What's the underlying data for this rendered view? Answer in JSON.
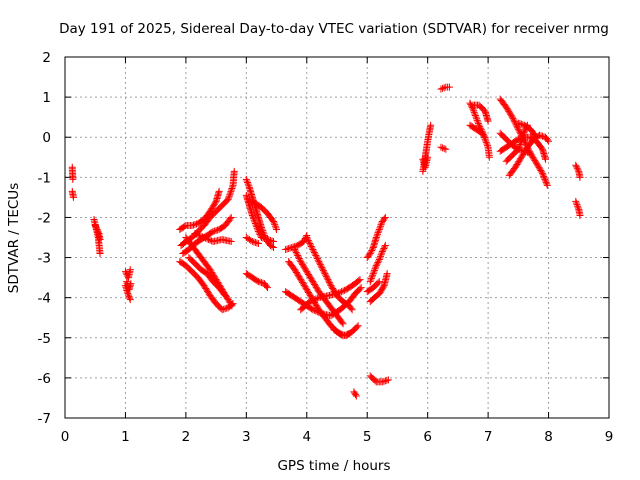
{
  "chart_data": {
    "type": "scatter",
    "title": "Day 191 of 2025, Sidereal Day-to-day VTEC variation (SDTVAR) for receiver nrmg",
    "xlabel": "GPS time / hours",
    "ylabel": "SDTVAR / TECUs",
    "xlim": [
      0,
      9
    ],
    "ylim": [
      -7,
      2
    ],
    "xticks": [
      "0",
      "1",
      "2",
      "3",
      "4",
      "5",
      "6",
      "7",
      "8",
      "9"
    ],
    "yticks": [
      "2",
      "1",
      "0",
      "-1",
      "-2",
      "-3",
      "-4",
      "-5",
      "-6",
      "-7"
    ],
    "grid": true,
    "marker": "+",
    "color": "#ff0000",
    "segments": [
      [
        [
          0.12,
          -0.75
        ],
        [
          0.13,
          -1.05
        ]
      ],
      [
        [
          0.12,
          -1.35
        ],
        [
          0.14,
          -1.5
        ]
      ],
      [
        [
          0.48,
          -2.05
        ],
        [
          0.52,
          -2.3
        ],
        [
          0.55,
          -2.5
        ],
        [
          0.58,
          -2.9
        ]
      ],
      [
        [
          0.5,
          -2.2
        ],
        [
          0.56,
          -2.4
        ],
        [
          0.58,
          -2.55
        ]
      ],
      [
        [
          1.0,
          -3.35
        ],
        [
          1.05,
          -3.5
        ],
        [
          1.08,
          -3.3
        ]
      ],
      [
        [
          1.0,
          -3.7
        ],
        [
          1.04,
          -3.9
        ],
        [
          1.08,
          -4.05
        ]
      ],
      [
        [
          1.02,
          -3.6
        ],
        [
          1.06,
          -3.8
        ],
        [
          1.09,
          -3.65
        ]
      ],
      [
        [
          1.9,
          -2.3
        ],
        [
          2.0,
          -2.2
        ],
        [
          2.1,
          -2.2
        ],
        [
          2.2,
          -2.15
        ],
        [
          2.3,
          -2.05
        ],
        [
          2.4,
          -1.85
        ],
        [
          2.5,
          -1.6
        ],
        [
          2.55,
          -1.35
        ]
      ],
      [
        [
          1.92,
          -2.7
        ],
        [
          2.0,
          -2.6
        ],
        [
          2.1,
          -2.5
        ],
        [
          2.2,
          -2.35
        ],
        [
          2.3,
          -2.2
        ],
        [
          2.4,
          -2.0
        ],
        [
          2.5,
          -1.85
        ],
        [
          2.6,
          -1.7
        ],
        [
          2.7,
          -1.55
        ],
        [
          2.78,
          -1.2
        ],
        [
          2.8,
          -0.85
        ]
      ],
      [
        [
          1.95,
          -2.9
        ],
        [
          2.05,
          -2.8
        ],
        [
          2.15,
          -2.65
        ],
        [
          2.25,
          -2.55
        ],
        [
          2.35,
          -2.45
        ],
        [
          2.45,
          -2.35
        ],
        [
          2.55,
          -2.3
        ],
        [
          2.65,
          -2.2
        ],
        [
          2.75,
          -2.0
        ]
      ],
      [
        [
          1.9,
          -3.1
        ],
        [
          2.0,
          -3.2
        ],
        [
          2.1,
          -3.35
        ],
        [
          2.2,
          -3.5
        ],
        [
          2.3,
          -3.7
        ],
        [
          2.4,
          -3.95
        ],
        [
          2.5,
          -4.15
        ],
        [
          2.6,
          -4.3
        ],
        [
          2.7,
          -4.25
        ],
        [
          2.78,
          -4.15
        ]
      ],
      [
        [
          2.0,
          -2.5
        ],
        [
          2.1,
          -2.7
        ],
        [
          2.2,
          -2.9
        ],
        [
          2.3,
          -3.1
        ],
        [
          2.4,
          -3.3
        ],
        [
          2.5,
          -3.55
        ],
        [
          2.6,
          -3.8
        ],
        [
          2.7,
          -4.05
        ],
        [
          2.76,
          -4.2
        ]
      ],
      [
        [
          2.05,
          -3.0
        ],
        [
          2.15,
          -3.15
        ],
        [
          2.25,
          -3.3
        ],
        [
          2.35,
          -3.4
        ],
        [
          2.45,
          -3.6
        ],
        [
          2.55,
          -3.75
        ],
        [
          2.65,
          -3.95
        ]
      ],
      [
        [
          2.15,
          -2.4
        ],
        [
          2.3,
          -2.5
        ],
        [
          2.45,
          -2.6
        ],
        [
          2.6,
          -2.55
        ],
        [
          2.75,
          -2.6
        ]
      ],
      [
        [
          3.0,
          -1.05
        ],
        [
          3.05,
          -1.25
        ],
        [
          3.1,
          -1.5
        ],
        [
          3.15,
          -1.75
        ],
        [
          3.2,
          -2.0
        ],
        [
          3.25,
          -2.25
        ],
        [
          3.3,
          -2.45
        ],
        [
          3.35,
          -2.6
        ],
        [
          3.4,
          -2.7
        ],
        [
          3.45,
          -2.75
        ]
      ],
      [
        [
          3.0,
          -1.45
        ],
        [
          3.05,
          -1.7
        ],
        [
          3.1,
          -1.95
        ],
        [
          3.15,
          -2.15
        ],
        [
          3.2,
          -2.35
        ],
        [
          3.25,
          -2.5
        ],
        [
          3.35,
          -2.55
        ],
        [
          3.45,
          -2.6
        ]
      ],
      [
        [
          3.05,
          -1.6
        ],
        [
          3.15,
          -1.65
        ],
        [
          3.25,
          -1.75
        ],
        [
          3.35,
          -1.9
        ],
        [
          3.45,
          -2.1
        ],
        [
          3.5,
          -2.3
        ]
      ],
      [
        [
          3.0,
          -2.5
        ],
        [
          3.05,
          -2.55
        ],
        [
          3.1,
          -2.6
        ],
        [
          3.2,
          -2.65
        ]
      ],
      [
        [
          3.0,
          -3.4
        ],
        [
          3.1,
          -3.5
        ],
        [
          3.2,
          -3.6
        ],
        [
          3.3,
          -3.65
        ],
        [
          3.35,
          -3.75
        ]
      ],
      [
        [
          3.65,
          -2.8
        ],
        [
          3.75,
          -2.75
        ],
        [
          3.85,
          -2.7
        ],
        [
          3.95,
          -2.6
        ],
        [
          4.0,
          -2.45
        ]
      ],
      [
        [
          3.7,
          -3.1
        ],
        [
          3.8,
          -3.3
        ],
        [
          3.9,
          -3.55
        ],
        [
          4.0,
          -3.8
        ],
        [
          4.1,
          -4.05
        ],
        [
          4.2,
          -4.3
        ],
        [
          4.3,
          -4.5
        ],
        [
          4.4,
          -4.7
        ],
        [
          4.5,
          -4.85
        ],
        [
          4.6,
          -4.95
        ],
        [
          4.7,
          -4.9
        ]
      ],
      [
        [
          3.8,
          -2.8
        ],
        [
          3.9,
          -3.1
        ],
        [
          4.0,
          -3.35
        ],
        [
          4.1,
          -3.6
        ],
        [
          4.2,
          -3.85
        ],
        [
          4.3,
          -4.05
        ],
        [
          4.4,
          -4.25
        ],
        [
          4.5,
          -4.45
        ],
        [
          4.6,
          -4.65
        ]
      ],
      [
        [
          4.0,
          -2.5
        ],
        [
          4.1,
          -2.8
        ],
        [
          4.2,
          -3.1
        ],
        [
          4.3,
          -3.4
        ],
        [
          4.4,
          -3.7
        ],
        [
          4.5,
          -3.95
        ],
        [
          4.6,
          -4.1
        ],
        [
          4.7,
          -4.2
        ],
        [
          4.75,
          -4.3
        ]
      ],
      [
        [
          3.65,
          -3.85
        ],
        [
          3.8,
          -4.0
        ],
        [
          3.95,
          -4.15
        ],
        [
          4.1,
          -4.3
        ],
        [
          4.25,
          -4.4
        ],
        [
          4.4,
          -4.45
        ],
        [
          4.55,
          -4.3
        ],
        [
          4.7,
          -4.1
        ],
        [
          4.8,
          -3.9
        ],
        [
          4.9,
          -3.75
        ]
      ],
      [
        [
          3.9,
          -4.3
        ],
        [
          4.05,
          -4.1
        ],
        [
          4.2,
          -4.0
        ],
        [
          4.35,
          -3.95
        ],
        [
          4.5,
          -3.9
        ],
        [
          4.65,
          -3.8
        ],
        [
          4.8,
          -3.65
        ],
        [
          4.88,
          -3.55
        ]
      ],
      [
        [
          4.45,
          -4.8
        ],
        [
          4.55,
          -4.9
        ],
        [
          4.65,
          -4.95
        ],
        [
          4.75,
          -4.85
        ],
        [
          4.85,
          -4.7
        ]
      ],
      [
        [
          4.78,
          -6.35
        ],
        [
          4.82,
          -6.45
        ]
      ],
      [
        [
          5.0,
          -3.0
        ],
        [
          5.05,
          -2.9
        ],
        [
          5.1,
          -2.75
        ],
        [
          5.15,
          -2.5
        ],
        [
          5.2,
          -2.3
        ],
        [
          5.25,
          -2.1
        ],
        [
          5.3,
          -2.0
        ]
      ],
      [
        [
          5.05,
          -3.6
        ],
        [
          5.1,
          -3.4
        ],
        [
          5.15,
          -3.2
        ],
        [
          5.2,
          -3.05
        ],
        [
          5.25,
          -2.85
        ],
        [
          5.3,
          -2.7
        ]
      ],
      [
        [
          5.05,
          -4.1
        ],
        [
          5.12,
          -4.0
        ],
        [
          5.2,
          -3.9
        ],
        [
          5.28,
          -3.7
        ],
        [
          5.33,
          -3.4
        ]
      ],
      [
        [
          5.0,
          -3.85
        ],
        [
          5.1,
          -3.75
        ],
        [
          5.2,
          -3.6
        ]
      ],
      [
        [
          5.05,
          -5.95
        ],
        [
          5.15,
          -6.1
        ],
        [
          5.25,
          -6.1
        ],
        [
          5.35,
          -6.05
        ]
      ],
      [
        [
          5.92,
          -0.85
        ],
        [
          5.95,
          -0.6
        ],
        [
          5.98,
          -0.3
        ],
        [
          6.0,
          -0.1
        ],
        [
          6.03,
          0.15
        ],
        [
          6.05,
          0.3
        ]
      ],
      [
        [
          5.92,
          -0.55
        ],
        [
          5.96,
          -0.75
        ],
        [
          6.0,
          -0.5
        ]
      ],
      [
        [
          6.22,
          1.2
        ],
        [
          6.3,
          1.25
        ],
        [
          6.36,
          1.25
        ]
      ],
      [
        [
          6.22,
          -0.25
        ],
        [
          6.3,
          -0.3
        ]
      ],
      [
        [
          6.7,
          0.85
        ],
        [
          6.75,
          0.7
        ],
        [
          6.8,
          0.5
        ],
        [
          6.85,
          0.3
        ],
        [
          6.9,
          0.15
        ],
        [
          6.95,
          -0.05
        ],
        [
          7.0,
          -0.25
        ],
        [
          7.02,
          -0.5
        ]
      ],
      [
        [
          6.7,
          0.3
        ],
        [
          6.8,
          0.2
        ],
        [
          6.9,
          0.1
        ],
        [
          6.95,
          0.0
        ]
      ],
      [
        [
          6.75,
          0.8
        ],
        [
          6.85,
          0.8
        ],
        [
          6.95,
          0.65
        ],
        [
          7.0,
          0.4
        ]
      ],
      [
        [
          7.2,
          0.95
        ],
        [
          7.3,
          0.75
        ],
        [
          7.4,
          0.5
        ],
        [
          7.5,
          0.2
        ],
        [
          7.6,
          -0.1
        ],
        [
          7.7,
          -0.4
        ],
        [
          7.8,
          -0.65
        ],
        [
          7.9,
          -0.9
        ],
        [
          7.98,
          -1.2
        ]
      ],
      [
        [
          7.2,
          0.1
        ],
        [
          7.3,
          -0.05
        ],
        [
          7.4,
          -0.2
        ],
        [
          7.5,
          -0.3
        ],
        [
          7.6,
          -0.35
        ],
        [
          7.7,
          -0.4
        ]
      ],
      [
        [
          7.2,
          -0.35
        ],
        [
          7.3,
          -0.25
        ],
        [
          7.4,
          -0.15
        ],
        [
          7.5,
          -0.05
        ],
        [
          7.6,
          0.0
        ],
        [
          7.7,
          0.0
        ],
        [
          7.8,
          -0.1
        ],
        [
          7.9,
          -0.3
        ],
        [
          7.95,
          -0.55
        ]
      ],
      [
        [
          7.3,
          -0.6
        ],
        [
          7.4,
          -0.45
        ],
        [
          7.5,
          -0.3
        ],
        [
          7.55,
          -0.1
        ],
        [
          7.6,
          0.15
        ],
        [
          7.65,
          0.3
        ]
      ],
      [
        [
          7.35,
          -0.95
        ],
        [
          7.45,
          -0.75
        ],
        [
          7.55,
          -0.5
        ],
        [
          7.65,
          -0.25
        ],
        [
          7.75,
          -0.05
        ],
        [
          7.85,
          0.05
        ],
        [
          7.95,
          0.0
        ],
        [
          8.0,
          -0.1
        ]
      ],
      [
        [
          7.5,
          0.35
        ],
        [
          7.6,
          0.3
        ],
        [
          7.7,
          0.2
        ],
        [
          7.8,
          0.0
        ]
      ],
      [
        [
          8.45,
          -0.7
        ],
        [
          8.5,
          -0.85
        ],
        [
          8.52,
          -1.0
        ]
      ],
      [
        [
          8.45,
          -1.6
        ],
        [
          8.5,
          -1.8
        ],
        [
          8.52,
          -1.95
        ]
      ]
    ]
  }
}
